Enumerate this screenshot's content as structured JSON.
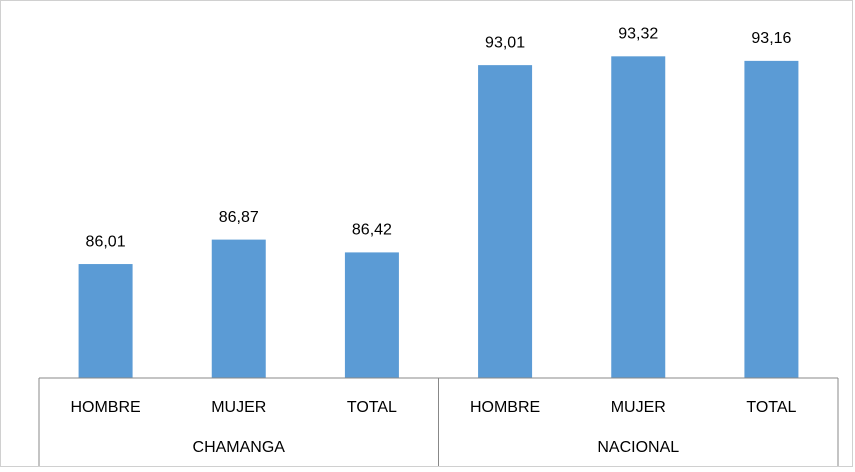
{
  "chart_data": {
    "type": "bar",
    "categories": [
      "HOMBRE",
      "MUJER",
      "TOTAL",
      "HOMBRE",
      "MUJER",
      "TOTAL"
    ],
    "groups": [
      "CHAMANGA",
      "NACIONAL"
    ],
    "values": [
      86.01,
      86.87,
      86.42,
      93.01,
      93.32,
      93.16
    ],
    "value_labels": [
      "86,01",
      "86,87",
      "86,42",
      "93,01",
      "93,32",
      "93,16"
    ],
    "color": "#5b9bd5",
    "ylim": [
      82,
      94
    ]
  }
}
